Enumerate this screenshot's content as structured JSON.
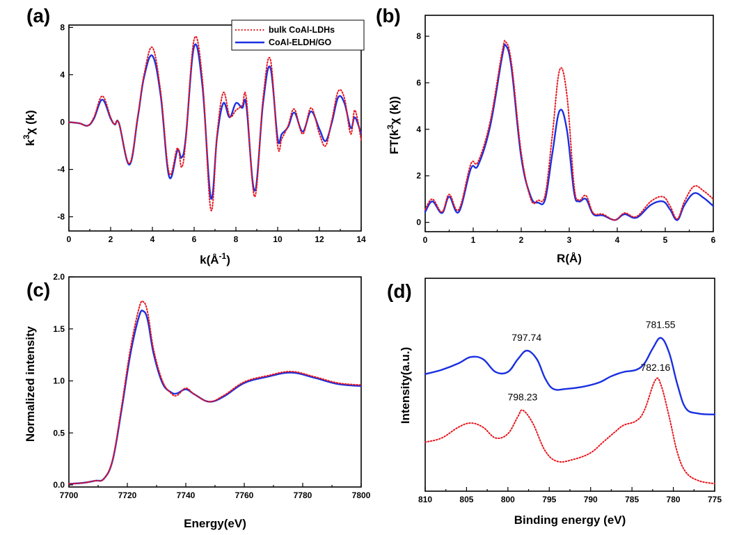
{
  "colors": {
    "bulk": "#e8141c",
    "eldh": "#1a2fe0"
  },
  "legend": {
    "bulk": "bulk CoAl-LDHs",
    "eldh": "CoAl-ELDH/GO"
  },
  "chart_data": [
    {
      "panel": "(a)",
      "type": "line",
      "xlabel": "k(Å",
      "xlabel_sup": "-1",
      "xlabel_end": ")",
      "ylabel": "k",
      "ylabel_sup": "3",
      "ylabel_end": "χ (k)",
      "xlim": [
        0,
        14
      ],
      "ylim": [
        -9.2,
        8.2
      ],
      "xticks": [
        0,
        2,
        4,
        6,
        8,
        10,
        12,
        14
      ],
      "yticks": [
        -8,
        -4,
        0,
        4,
        8
      ],
      "legend_position": "top-right",
      "series": [
        {
          "name": "bulk CoAl-LDHs",
          "style": "dotted",
          "x": [
            0,
            0.5,
            0.9,
            1.2,
            1.6,
            2.0,
            2.2,
            2.4,
            2.9,
            3.3,
            3.6,
            4.0,
            4.4,
            4.8,
            5.2,
            5.4,
            5.6,
            6.0,
            6.4,
            6.8,
            7.1,
            7.4,
            7.7,
            8.0,
            8.3,
            8.5,
            8.9,
            9.3,
            9.65,
            10.0,
            10.2,
            10.5,
            10.8,
            11.2,
            11.6,
            12.0,
            12.3,
            12.6,
            12.9,
            13.2,
            13.5,
            13.7,
            14.0
          ],
          "y": [
            0,
            -0.1,
            -0.3,
            0.4,
            2.2,
            0.4,
            -0.2,
            -0.1,
            -3.5,
            0.5,
            4.0,
            6.3,
            2.5,
            -4.3,
            -2.2,
            -3.8,
            -1.5,
            7.0,
            3.5,
            -7.4,
            -1.0,
            2.5,
            0.5,
            1.0,
            1.4,
            2.0,
            -6.3,
            2.0,
            5.3,
            -2.0,
            -1.4,
            -0.3,
            1.1,
            -1.0,
            1.2,
            -1.0,
            -2.0,
            0.2,
            2.6,
            2.0,
            -1.0,
            1.0,
            -1.5
          ]
        },
        {
          "name": "CoAl-ELDH/GO",
          "style": "solid",
          "x": [
            0,
            0.5,
            0.9,
            1.2,
            1.6,
            2.0,
            2.2,
            2.4,
            2.9,
            3.3,
            3.6,
            4.0,
            4.4,
            4.8,
            5.2,
            5.4,
            5.6,
            6.0,
            6.4,
            6.8,
            7.1,
            7.4,
            7.7,
            8.0,
            8.3,
            8.5,
            8.9,
            9.3,
            9.65,
            10.0,
            10.2,
            10.5,
            10.8,
            11.2,
            11.6,
            12.0,
            12.3,
            12.6,
            12.9,
            13.2,
            13.5,
            13.7,
            14.0
          ],
          "y": [
            0,
            -0.1,
            -0.3,
            0.3,
            1.9,
            0.3,
            -0.2,
            -0.1,
            -3.6,
            0.4,
            3.8,
            5.6,
            2.2,
            -4.6,
            -2.4,
            -3.0,
            -1.3,
            6.4,
            3.0,
            -6.4,
            -1.2,
            1.6,
            0.4,
            1.6,
            1.2,
            1.4,
            -5.8,
            1.6,
            4.6,
            -1.4,
            -1.0,
            -0.4,
            0.8,
            -0.8,
            0.9,
            -0.6,
            -1.6,
            0.0,
            2.1,
            1.6,
            -0.5,
            0.4,
            -1.0
          ]
        }
      ]
    },
    {
      "panel": "(b)",
      "type": "line",
      "xlabel": "R(Å)",
      "ylabel": "FT(k",
      "ylabel_sup": "3",
      "ylabel_end": "χ (k))",
      "xlim": [
        0,
        6
      ],
      "ylim": [
        -0.4,
        8.9
      ],
      "xticks": [
        0,
        1,
        2,
        3,
        4,
        5,
        6
      ],
      "yticks": [
        0,
        2,
        4,
        6,
        8
      ],
      "series": [
        {
          "name": "bulk CoAl-LDHs",
          "style": "dotted",
          "x": [
            0,
            0.15,
            0.35,
            0.5,
            0.7,
            0.95,
            1.1,
            1.35,
            1.6,
            1.68,
            1.8,
            2.0,
            2.2,
            2.35,
            2.5,
            2.65,
            2.8,
            2.95,
            3.1,
            3.2,
            3.35,
            3.5,
            3.7,
            3.95,
            4.15,
            4.4,
            4.7,
            4.95,
            5.1,
            5.25,
            5.4,
            5.6,
            5.8,
            6.0
          ],
          "y": [
            0.55,
            1.0,
            0.45,
            1.2,
            0.55,
            2.5,
            2.6,
            4.3,
            7.3,
            7.75,
            6.8,
            3.0,
            1.0,
            0.95,
            1.2,
            3.8,
            6.55,
            5.5,
            1.6,
            0.95,
            1.15,
            0.4,
            0.35,
            0.1,
            0.4,
            0.25,
            0.9,
            1.1,
            0.7,
            0.15,
            0.9,
            1.55,
            1.35,
            1.0
          ]
        },
        {
          "name": "CoAl-ELDH/GO",
          "style": "solid",
          "x": [
            0,
            0.15,
            0.35,
            0.5,
            0.7,
            0.95,
            1.1,
            1.35,
            1.6,
            1.68,
            1.8,
            2.0,
            2.2,
            2.35,
            2.5,
            2.65,
            2.8,
            2.95,
            3.1,
            3.2,
            3.35,
            3.5,
            3.7,
            3.95,
            4.15,
            4.4,
            4.7,
            4.95,
            5.1,
            5.25,
            5.4,
            5.6,
            5.8,
            6.0
          ],
          "y": [
            0.45,
            0.9,
            0.4,
            1.1,
            0.45,
            2.3,
            2.45,
            4.1,
            7.1,
            7.6,
            6.6,
            2.8,
            1.1,
            0.85,
            1.0,
            3.0,
            4.8,
            4.0,
            1.3,
            0.9,
            1.0,
            0.35,
            0.3,
            0.1,
            0.35,
            0.2,
            0.75,
            0.9,
            0.55,
            0.1,
            0.75,
            1.25,
            1.05,
            0.7
          ]
        }
      ]
    },
    {
      "panel": "(c)",
      "type": "line",
      "xlabel": "Energy(eV)",
      "ylabel": "Normalized intensity",
      "xlim": [
        7700,
        7800
      ],
      "ylim": [
        -0.02,
        2.0
      ],
      "xticks": [
        7700,
        7720,
        7740,
        7760,
        7780,
        7800
      ],
      "yticks": [
        0.0,
        0.5,
        1.0,
        1.5,
        2.0
      ],
      "series": [
        {
          "name": "bulk CoAl-LDHs",
          "style": "dotted",
          "x": [
            7700,
            7705,
            7709,
            7712,
            7715,
            7718,
            7721,
            7724,
            7725.5,
            7727,
            7729,
            7732,
            7735,
            7737,
            7740,
            7743,
            7748,
            7753,
            7760,
            7768,
            7776,
            7784,
            7792,
            7800
          ],
          "y": [
            0.01,
            0.02,
            0.04,
            0.06,
            0.25,
            0.75,
            1.3,
            1.7,
            1.76,
            1.65,
            1.3,
            1.0,
            0.88,
            0.86,
            0.93,
            0.87,
            0.8,
            0.86,
            0.99,
            1.05,
            1.09,
            1.04,
            0.98,
            0.96
          ]
        },
        {
          "name": "CoAl-ELDH/GO",
          "style": "solid",
          "x": [
            7700,
            7705,
            7709,
            7712,
            7715,
            7718,
            7721,
            7724,
            7725.5,
            7727,
            7729,
            7732,
            7735,
            7737,
            7740,
            7743,
            7748,
            7753,
            7760,
            7768,
            7776,
            7784,
            7792,
            7800
          ],
          "y": [
            0.01,
            0.02,
            0.04,
            0.06,
            0.24,
            0.72,
            1.25,
            1.62,
            1.67,
            1.58,
            1.26,
            0.98,
            0.89,
            0.88,
            0.92,
            0.87,
            0.8,
            0.85,
            0.98,
            1.04,
            1.08,
            1.03,
            0.97,
            0.95
          ]
        }
      ]
    },
    {
      "panel": "(d)",
      "type": "line",
      "xlabel": "Binding energy (eV)",
      "ylabel": "Intensity(a.u.)",
      "xlim": [
        810,
        775
      ],
      "ylim": [
        0,
        10
      ],
      "xticks": [
        810,
        805,
        800,
        795,
        790,
        785,
        780,
        775
      ],
      "yticks": [],
      "annotations": [
        {
          "text": "797.74",
          "series": "CoAl-ELDH/GO",
          "x": 797.74
        },
        {
          "text": "781.55",
          "series": "CoAl-ELDH/GO",
          "x": 781.55
        },
        {
          "text": "798.23",
          "series": "bulk CoAl-LDHs",
          "x": 798.23
        },
        {
          "text": "782.16",
          "series": "bulk CoAl-LDHs",
          "x": 782.16
        }
      ],
      "series": [
        {
          "name": "CoAl-ELDH/GO",
          "style": "solid",
          "x": [
            810,
            808,
            806,
            804.5,
            803,
            801.5,
            800,
            798.8,
            797.7,
            796.5,
            795.5,
            794.5,
            793,
            791,
            789,
            787.5,
            786,
            784.5,
            783.5,
            782.5,
            781.5,
            780.5,
            779.5,
            778.5,
            777,
            775
          ],
          "y": [
            5.5,
            5.7,
            6.0,
            6.3,
            6.2,
            5.6,
            5.6,
            6.2,
            6.6,
            6.2,
            5.3,
            4.8,
            4.8,
            4.9,
            5.1,
            5.4,
            5.6,
            5.7,
            6.0,
            6.7,
            7.2,
            6.5,
            5.0,
            3.9,
            3.65,
            3.6
          ]
        },
        {
          "name": "bulk CoAl-LDHs",
          "style": "dotted",
          "x": [
            810,
            808,
            806,
            804.5,
            803,
            801.5,
            800,
            798.8,
            798.2,
            797,
            795.5,
            794,
            792,
            790,
            788.5,
            787,
            786,
            784.5,
            783.5,
            782.2,
            781.5,
            780.5,
            779.5,
            778.5,
            777,
            775
          ],
          "y": [
            2.3,
            2.5,
            3.0,
            3.2,
            3.0,
            2.5,
            2.7,
            3.5,
            3.8,
            3.2,
            1.9,
            1.4,
            1.5,
            1.8,
            2.3,
            2.8,
            3.1,
            3.3,
            3.8,
            5.2,
            5.0,
            3.5,
            1.8,
            0.9,
            0.5,
            0.35
          ]
        }
      ]
    }
  ]
}
